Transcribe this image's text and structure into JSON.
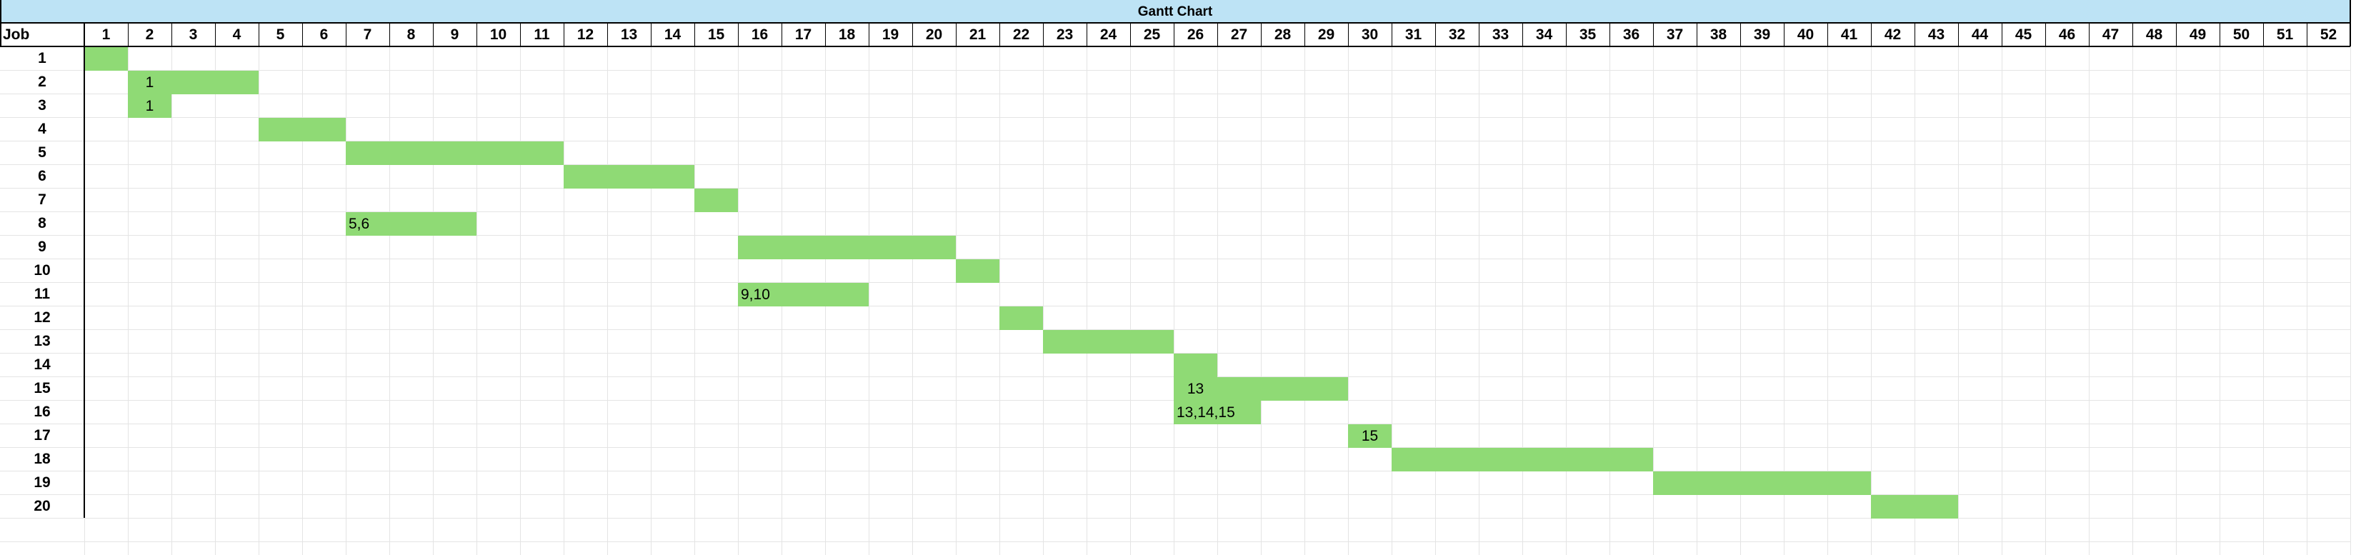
{
  "colors": {
    "title_fill": "#bde3f5",
    "bar_fill": "#8fda75",
    "grid": "#e4e4e4",
    "border": "#000000",
    "text": "#000000"
  },
  "chart_data": {
    "type": "bar",
    "title": "Gantt Chart",
    "row_header": "Job",
    "periods": [
      1,
      2,
      3,
      4,
      5,
      6,
      7,
      8,
      9,
      10,
      11,
      12,
      13,
      14,
      15,
      16,
      17,
      18,
      19,
      20,
      21,
      22,
      23,
      24,
      25,
      26,
      27,
      28,
      29,
      30,
      31,
      32,
      33,
      34,
      35,
      36,
      37,
      38,
      39,
      40,
      41,
      42,
      43,
      44,
      45,
      46,
      47,
      48,
      49,
      50,
      51,
      52
    ],
    "tasks": [
      {
        "job": "1",
        "start": 1,
        "end": 1,
        "label": ""
      },
      {
        "job": "2",
        "start": 2,
        "end": 4,
        "label": "1"
      },
      {
        "job": "3",
        "start": 2,
        "end": 2,
        "label": "1"
      },
      {
        "job": "4",
        "start": 5,
        "end": 6,
        "label": ""
      },
      {
        "job": "5",
        "start": 7,
        "end": 11,
        "label": ""
      },
      {
        "job": "6",
        "start": 12,
        "end": 14,
        "label": ""
      },
      {
        "job": "7",
        "start": 15,
        "end": 15,
        "label": ""
      },
      {
        "job": "8",
        "start": 7,
        "end": 9,
        "label": "5,6"
      },
      {
        "job": "9",
        "start": 16,
        "end": 20,
        "label": ""
      },
      {
        "job": "10",
        "start": 21,
        "end": 21,
        "label": ""
      },
      {
        "job": "11",
        "start": 16,
        "end": 18,
        "label": "9,10"
      },
      {
        "job": "12",
        "start": 22,
        "end": 22,
        "label": ""
      },
      {
        "job": "13",
        "start": 23,
        "end": 25,
        "label": ""
      },
      {
        "job": "14",
        "start": 26,
        "end": 26,
        "label": ""
      },
      {
        "job": "15",
        "start": 26,
        "end": 29,
        "label": "13"
      },
      {
        "job": "16",
        "start": 26,
        "end": 27,
        "label": "13,14,15"
      },
      {
        "job": "17",
        "start": 30,
        "end": 30,
        "label": "15"
      },
      {
        "job": "18",
        "start": 31,
        "end": 36,
        "label": ""
      },
      {
        "job": "19",
        "start": 37,
        "end": 41,
        "label": ""
      },
      {
        "job": "20",
        "start": 42,
        "end": 43,
        "label": ""
      }
    ]
  }
}
